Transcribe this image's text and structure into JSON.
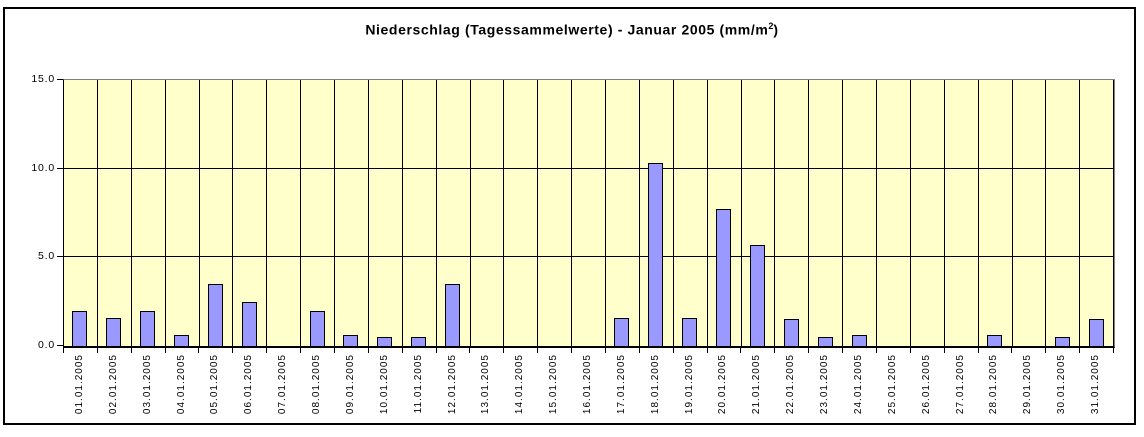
{
  "title": {
    "main": "Niederschlag (Tagessammelwerte) - Januar 2005 (mm/m",
    "sup": "2",
    "suffix": ")"
  },
  "chart_data": {
    "type": "bar",
    "title": "Niederschlag (Tagessammelwerte) - Januar 2005 (mm/m²)",
    "xlabel": "",
    "ylabel": "",
    "ylim": [
      0,
      15
    ],
    "yticks": [
      0,
      5,
      10,
      15
    ],
    "ytick_labels": [
      "0.0",
      "5.0",
      "10.0",
      "15.0"
    ],
    "grid": "vertical lines per day, horizontal lines at 5 and 10",
    "legend": "none",
    "categories": [
      "01.01.2005",
      "02.01.2005",
      "03.01.2005",
      "04.01.2005",
      "05.01.2005",
      "06.01.2005",
      "07.01.2005",
      "08.01.2005",
      "09.01.2005",
      "10.01.2005",
      "11.01.2005",
      "12.01.2005",
      "13.01.2005",
      "14.01.2005",
      "15.01.2005",
      "16.01.2005",
      "17.01.2005",
      "18.01.2005",
      "19.01.2005",
      "20.01.2005",
      "21.01.2005",
      "22.01.2005",
      "23.01.2005",
      "24.01.2005",
      "25.01.2005",
      "26.01.2005",
      "27.01.2005",
      "28.01.2005",
      "29.01.2005",
      "30.01.2005",
      "31.01.2005"
    ],
    "values": [
      2.0,
      1.6,
      2.0,
      0.6,
      3.5,
      2.5,
      0,
      2.0,
      0.6,
      0.5,
      0.5,
      3.5,
      0,
      0,
      0,
      0,
      1.6,
      10.3,
      1.6,
      7.7,
      5.7,
      1.5,
      0.5,
      0.6,
      0,
      0,
      0,
      0.6,
      0,
      0.5,
      1.5
    ],
    "colors": {
      "bar_fill": "#9999FF",
      "bar_border": "#000000",
      "plot_background": "#FFFFCC",
      "gridline": "#000000",
      "plot_edge_gray": "#808080",
      "figure_border": "#000000",
      "text": "#000000"
    }
  }
}
